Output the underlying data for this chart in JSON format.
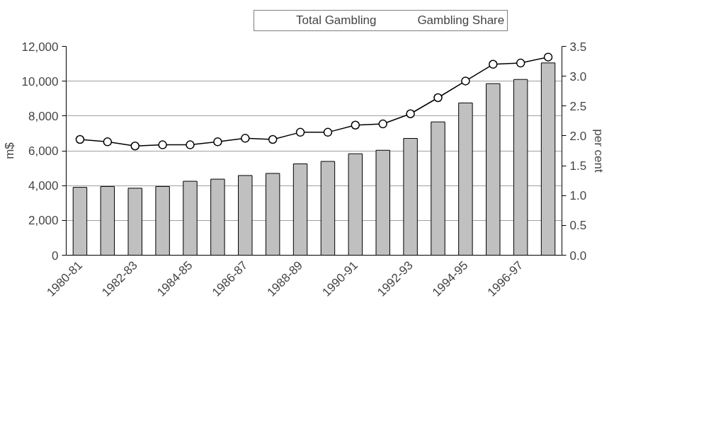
{
  "chart_data": {
    "type": "bar",
    "categories": [
      "1980-81",
      null,
      "1982-83",
      null,
      "1984-85",
      null,
      "1986-87",
      null,
      "1988-89",
      null,
      "1990-91",
      null,
      "1992-93",
      null,
      "1994-95",
      null,
      "1996-97",
      null
    ],
    "series": [
      {
        "name": "Total Gambling",
        "color": "#c0c0c0",
        "values": [
          3900,
          3950,
          3850,
          3950,
          4250,
          4370,
          4580,
          4700,
          5250,
          5390,
          5830,
          6030,
          6710,
          7660,
          8750,
          9860,
          10100,
          11050
        ]
      },
      {
        "name": "Gambling Share",
        "type": "line",
        "axis": "y2",
        "color": "#000000",
        "marker": "circle",
        "values": [
          1.94,
          1.9,
          1.83,
          1.85,
          1.85,
          1.9,
          1.96,
          1.94,
          2.06,
          2.06,
          2.18,
          2.2,
          2.37,
          2.64,
          2.92,
          3.2,
          3.22,
          3.32
        ]
      }
    ],
    "ylabel": "m$",
    "y2label": "per cent",
    "ylim": [
      0,
      12000
    ],
    "yticks": [
      {
        "value": 0,
        "label": "0"
      },
      {
        "value": 2000,
        "label": "2,000"
      },
      {
        "value": 4000,
        "label": "4,000"
      },
      {
        "value": 6000,
        "label": "6,000"
      },
      {
        "value": 8000,
        "label": "8,000"
      },
      {
        "value": 10000,
        "label": "10,000"
      },
      {
        "value": 12000,
        "label": "12,000"
      }
    ],
    "y2lim": [
      0,
      3.5
    ],
    "y2ticks": [
      {
        "value": 0,
        "label": "0.0"
      },
      {
        "value": 0.5,
        "label": "0.5"
      },
      {
        "value": 1,
        "label": "1.0"
      },
      {
        "value": 1.5,
        "label": "1.5"
      },
      {
        "value": 2,
        "label": "2.0"
      },
      {
        "value": 2.5,
        "label": "2.5"
      },
      {
        "value": 3,
        "label": "3.0"
      },
      {
        "value": 3.5,
        "label": "3.5"
      }
    ],
    "grid": "y",
    "legend": "top"
  }
}
